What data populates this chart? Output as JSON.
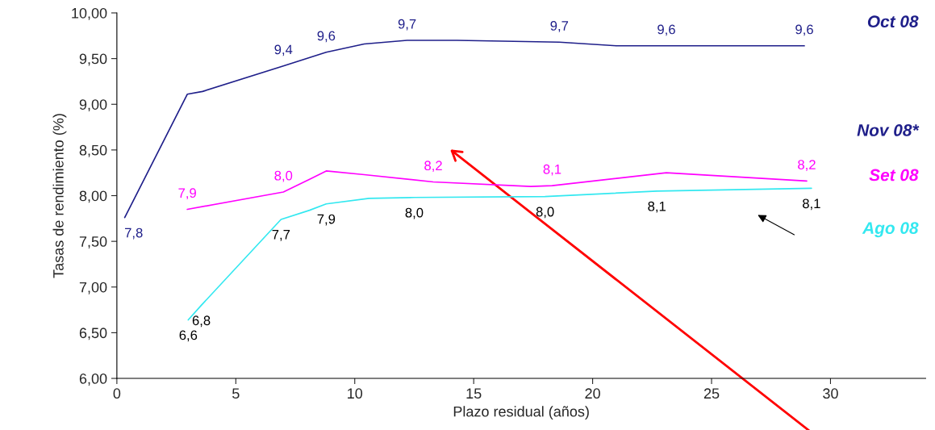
{
  "chart_data": {
    "type": "line",
    "xlabel": "Plazo residual (años)",
    "ylabel": "Tasas de rendimiento (%)",
    "xlim": [
      0,
      34
    ],
    "xticks": [
      0,
      5,
      10,
      15,
      20,
      25,
      30
    ],
    "ylim": [
      6,
      10
    ],
    "yticks": [
      {
        "value": 6,
        "label": "6,00"
      },
      {
        "value": 6.5,
        "label": "6,50"
      },
      {
        "value": 7,
        "label": "7,00"
      },
      {
        "value": 7.5,
        "label": "7,50"
      },
      {
        "value": 8,
        "label": "8,00"
      },
      {
        "value": 8.5,
        "label": "8,50"
      },
      {
        "value": 9,
        "label": "9,00"
      },
      {
        "value": 9.5,
        "label": "9,50"
      },
      {
        "value": 10,
        "label": "10,00"
      }
    ],
    "grid": false,
    "legend": false,
    "marker": "none",
    "line_style": "solid",
    "series": [
      {
        "name": "Oct 08",
        "color": "#1f1f8a",
        "x": [
          0.33,
          2.96,
          3.6,
          7.0,
          8.8,
          10.4,
          12.2,
          14.3,
          18.6,
          21.0,
          23.1,
          28.9
        ],
        "values": [
          7.76,
          9.11,
          9.14,
          9.42,
          9.57,
          9.66,
          9.7,
          9.7,
          9.68,
          9.64,
          9.64,
          9.64
        ],
        "value_labels": [
          "7,8",
          null,
          null,
          "9,4",
          "9,6",
          null,
          "9,7",
          null,
          "9,7",
          null,
          "9,6",
          "9,6"
        ]
      },
      {
        "name": "Set 08",
        "color": "#ff00ff",
        "x": [
          2.96,
          7.0,
          8.1,
          8.8,
          10.4,
          13.3,
          17.4,
          18.3,
          23.1,
          29.0
        ],
        "values": [
          7.85,
          8.04,
          8.18,
          8.27,
          8.23,
          8.15,
          8.1,
          8.11,
          8.25,
          8.16
        ],
        "value_labels": [
          "7,9",
          "8,0",
          null,
          null,
          null,
          "8,2",
          null,
          "8,1",
          null,
          "8,2"
        ]
      },
      {
        "name": "Ago 08",
        "color": "#33e8f0",
        "x": [
          3.0,
          3.55,
          6.9,
          8.1,
          8.8,
          10.6,
          12.5,
          18.0,
          22.7,
          29.2
        ],
        "values": [
          6.64,
          6.8,
          7.74,
          7.84,
          7.91,
          7.97,
          7.98,
          7.99,
          8.05,
          8.08
        ],
        "value_labels": [
          "6,6",
          "6,8",
          "7,7",
          null,
          "7,9",
          null,
          "8,0",
          "8,0",
          "8,1",
          "8,1"
        ]
      }
    ],
    "annotations": [
      "Nov 08*"
    ]
  }
}
